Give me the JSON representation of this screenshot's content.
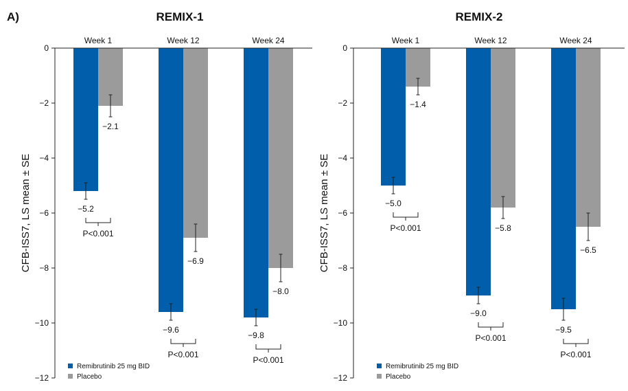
{
  "figure_label": "A)",
  "colors": {
    "treatment": "#005EAA",
    "placebo": "#9B9B9B",
    "axis": "#222222"
  },
  "chart_data": [
    {
      "type": "bar",
      "title": "REMIX-1",
      "ylabel": "CFB-ISS7, LS mean ± SE",
      "ylim": [
        -12,
        0
      ],
      "yticks": [
        0,
        -2,
        -4,
        -6,
        -8,
        -10,
        -12
      ],
      "ytick_labels": [
        "0",
        "−2",
        "−4",
        "−6",
        "−8",
        "−10",
        "−12"
      ],
      "categories": [
        "Week 1",
        "Week 12",
        "Week 24"
      ],
      "series": [
        {
          "name": "Remibrutinib 25 mg BID",
          "values": [
            -5.2,
            -9.6,
            -9.8
          ],
          "se": [
            0.3,
            0.3,
            0.3
          ],
          "labels": [
            "−5.2",
            "−9.6",
            "−9.8"
          ]
        },
        {
          "name": "Placebo",
          "values": [
            -2.1,
            -6.9,
            -8.0
          ],
          "se": [
            0.4,
            0.5,
            0.5
          ],
          "labels": [
            "−2.1",
            "−6.9",
            "−8.0"
          ]
        }
      ],
      "pvalues": [
        "P<0.001",
        "P<0.001",
        "P<0.001"
      ],
      "legend": {
        "position": "bottom-left",
        "entries": [
          "Remibrutinib 25 mg BID",
          "Placebo"
        ]
      }
    },
    {
      "type": "bar",
      "title": "REMIX-2",
      "ylabel": "CFB-ISS7, LS mean ± SE",
      "ylim": [
        -12,
        0
      ],
      "yticks": [
        0,
        -2,
        -4,
        -6,
        -8,
        -10,
        -12
      ],
      "ytick_labels": [
        "0",
        "−2",
        "−4",
        "−6",
        "−8",
        "−10",
        "−12"
      ],
      "categories": [
        "Week 1",
        "Week 12",
        "Week 24"
      ],
      "series": [
        {
          "name": "Remibrutinib 25 mg BID",
          "values": [
            -5.0,
            -9.0,
            -9.5
          ],
          "se": [
            0.3,
            0.3,
            0.4
          ],
          "labels": [
            "−5.0",
            "−9.0",
            "−9.5"
          ]
        },
        {
          "name": "Placebo",
          "values": [
            -1.4,
            -5.8,
            -6.5
          ],
          "se": [
            0.3,
            0.4,
            0.5
          ],
          "labels": [
            "−1.4",
            "−5.8",
            "−6.5"
          ]
        }
      ],
      "pvalues": [
        "P<0.001",
        "P<0.001",
        "P<0.001"
      ],
      "legend": {
        "position": "bottom-left",
        "entries": [
          "Remibrutinib 25 mg BID",
          "Placebo"
        ]
      }
    }
  ]
}
